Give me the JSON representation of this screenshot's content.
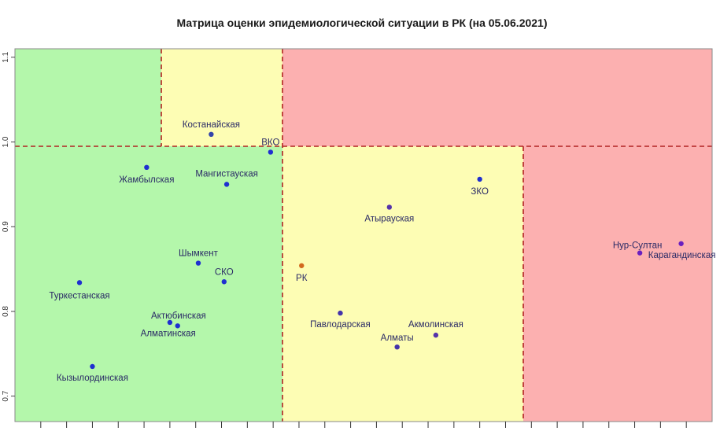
{
  "chart_data": {
    "type": "scatter",
    "title": "Матрица оценки эпидемиологической ситуации в РК (на 05.06.2021)",
    "xlabel": "",
    "ylabel": "",
    "xlim": [
      0,
      27
    ],
    "ylim": [
      0.67,
      1.11
    ],
    "y_ticks": [
      "0.7",
      "0.8",
      "0.9",
      "1.0",
      "1.1"
    ],
    "grid": false,
    "zones": {
      "green": "#b4f7ab",
      "yellow": "#fdfdb4",
      "red": "#fcb0b0",
      "divider": "#b22222"
    },
    "points": [
      {
        "name": "Костанайская",
        "x": 7.6,
        "y": 1.009,
        "color": "#3344aa"
      },
      {
        "name": "ВКО",
        "x": 9.9,
        "y": 0.988,
        "color": "#1f2fd0"
      },
      {
        "name": "Жамбылская",
        "x": 5.1,
        "y": 0.97,
        "color": "#1f2fd0"
      },
      {
        "name": "Мангистауская",
        "x": 8.2,
        "y": 0.95,
        "color": "#1f2fd0"
      },
      {
        "name": "ЗКО",
        "x": 18.0,
        "y": 0.956,
        "color": "#1f2fd0"
      },
      {
        "name": "Атырауская",
        "x": 14.5,
        "y": 0.923,
        "color": "#5533aa"
      },
      {
        "name": "Нур-Султан",
        "x": 24.2,
        "y": 0.869,
        "color": "#6a1fbf"
      },
      {
        "name": "Карагандинская",
        "x": 25.8,
        "y": 0.88,
        "color": "#6a1fbf"
      },
      {
        "name": "Шымкент",
        "x": 7.1,
        "y": 0.857,
        "color": "#1f2fd0"
      },
      {
        "name": "РК",
        "x": 11.1,
        "y": 0.854,
        "color": "#d2691e"
      },
      {
        "name": "СКО",
        "x": 8.1,
        "y": 0.835,
        "color": "#1f2fd0"
      },
      {
        "name": "Туркестанская",
        "x": 2.5,
        "y": 0.834,
        "color": "#1f2fd0"
      },
      {
        "name": "Павлодарская",
        "x": 12.6,
        "y": 0.798,
        "color": "#4433aa"
      },
      {
        "name": "Актюбинская",
        "x": 6.0,
        "y": 0.787,
        "color": "#1f2fd0"
      },
      {
        "name": "Алматинская",
        "x": 6.3,
        "y": 0.783,
        "color": "#1f2fd0"
      },
      {
        "name": "Акмолинская",
        "x": 16.3,
        "y": 0.772,
        "color": "#5533aa"
      },
      {
        "name": "Алматы",
        "x": 14.8,
        "y": 0.758,
        "color": "#4433aa"
      },
      {
        "name": "Кызылординская",
        "x": 3.0,
        "y": 0.735,
        "color": "#1f2fd0"
      }
    ]
  }
}
